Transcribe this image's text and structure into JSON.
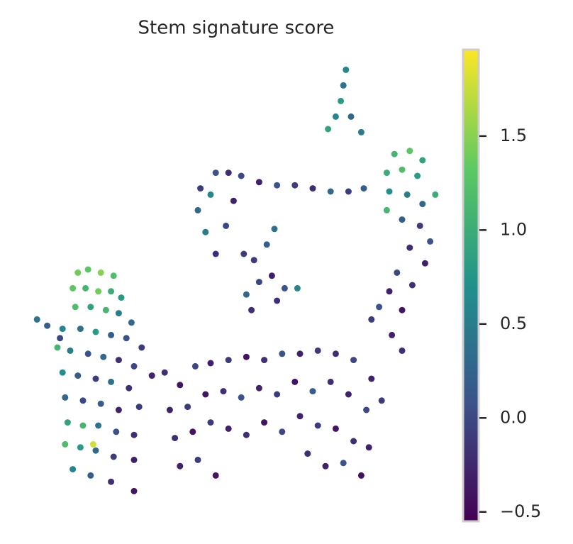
{
  "chart_data": {
    "type": "scatter",
    "title": "Stem signature score",
    "colormap": "viridis",
    "xlim": [
      0,
      16
    ],
    "ylim": [
      0,
      14
    ],
    "clim": [
      -0.55,
      1.96
    ],
    "cticks": [
      {
        "value": -0.5,
        "label": "−0.5"
      },
      {
        "value": 0,
        "label": "0.0"
      },
      {
        "value": 0.5,
        "label": "0.5"
      },
      {
        "value": 1,
        "label": "1.0"
      },
      {
        "value": 1.5,
        "label": "1.5"
      }
    ],
    "x": [
      1.8,
      2.2,
      2.7,
      3.2,
      1.6,
      2.1,
      2.6,
      3.1,
      3.5,
      1.7,
      2.3,
      2.9,
      3.4,
      3.9,
      1.2,
      1.9,
      2.5,
      3.1,
      3.7,
      4.3,
      1.0,
      1.5,
      2.2,
      2.8,
      3.4,
      4.0,
      4.7,
      1.2,
      1.8,
      2.5,
      3.1,
      3.8,
      1.3,
      2.0,
      2.7,
      3.4,
      4.2,
      1.4,
      2.0,
      2.6,
      3.3,
      4.0,
      1.3,
      1.9,
      2.5,
      3.2,
      4.0,
      1.6,
      2.3,
      3.1,
      4.0,
      2.4,
      0.2,
      0.6,
      1.1,
      5.2,
      5.8,
      6.4,
      7.0,
      7.7,
      8.4,
      9.1,
      9.8,
      10.5,
      11.2,
      11.9,
      12.6,
      13.3,
      13.7,
      5.4,
      6.1,
      6.8,
      7.5,
      8.2,
      8.9,
      9.6,
      10.3,
      11.0,
      11.7,
      12.4,
      13.1,
      5.6,
      6.3,
      7.0,
      7.7,
      8.4,
      9.1,
      9.8,
      10.5,
      11.2,
      11.9,
      12.6,
      13.2,
      5.8,
      6.5,
      7.2,
      10.8,
      11.5,
      12.2,
      12.9,
      14.2,
      14.8,
      15.3,
      13.9,
      14.5,
      15.1,
      15.8,
      14.0,
      14.7,
      15.3,
      13.9,
      14.5,
      15.2,
      15.6,
      14.8,
      15.4,
      14.3,
      14.9,
      14.0,
      13.6,
      14.5,
      13.3,
      14.1,
      14.5,
      12.3,
      12.2,
      12.1,
      11.9,
      11.6,
      12.5,
      12.9,
      7.2,
      7.7,
      8.2,
      8.9,
      9.6,
      10.3,
      11.0,
      11.7,
      12.4,
      13.0,
      6.6,
      6.5,
      6.8,
      7.2,
      7.6,
      7.9,
      8.3,
      7.0,
      9.5,
      9.2,
      8.7,
      8.9,
      8.4,
      8.6,
      9.4,
      9.9,
      10.4,
      9.6
    ],
    "y": [
      7.4,
      7.5,
      7.4,
      7.3,
      6.9,
      6.9,
      6.8,
      6.8,
      6.6,
      6.3,
      6.3,
      6.2,
      6.1,
      5.8,
      5.6,
      5.6,
      5.5,
      5.4,
      5.3,
      5.0,
      5.0,
      4.9,
      4.8,
      4.7,
      4.6,
      4.4,
      4.1,
      4.2,
      4.1,
      4.0,
      3.9,
      3.7,
      3.4,
      3.3,
      3.2,
      3.0,
      3.1,
      2.6,
      2.5,
      2.5,
      2.3,
      2.2,
      1.9,
      1.8,
      1.7,
      1.5,
      1.4,
      1.1,
      0.9,
      0.7,
      0.4,
      1.9,
      5.9,
      5.7,
      5.3,
      4.2,
      3.8,
      4.4,
      4.5,
      4.6,
      4.7,
      4.6,
      4.8,
      4.8,
      4.9,
      4.8,
      4.6,
      4.0,
      3.3,
      3.0,
      3.1,
      3.5,
      3.6,
      3.4,
      3.7,
      3.5,
      3.9,
      3.6,
      3.9,
      3.5,
      3.0,
      2.1,
      2.3,
      2.6,
      2.4,
      2.2,
      2.6,
      2.3,
      2.8,
      2.5,
      2.4,
      2.0,
      1.8,
      1.2,
      1.4,
      0.9,
      1.6,
      1.2,
      1.3,
      0.9,
      11.2,
      11.3,
      11.0,
      10.6,
      10.7,
      10.5,
      9.9,
      10.0,
      9.9,
      9.6,
      9.4,
      9.1,
      8.9,
      8.4,
      8.2,
      7.7,
      7.4,
      7.0,
      6.8,
      6.3,
      6.2,
      5.9,
      5.4,
      4.9,
      13.9,
      13.4,
      12.9,
      12.4,
      12.0,
      12.4,
      11.9,
      10.6,
      10.6,
      10.5,
      10.3,
      10.2,
      10.2,
      10.1,
      10.0,
      10.0,
      10.1,
      10.1,
      9.4,
      8.7,
      8.0,
      8.9,
      9.7,
      8.0,
      9.9,
      8.8,
      8.3,
      7.8,
      7.1,
      6.7,
      6.2,
      7.3,
      6.9,
      6.9,
      6.5
    ],
    "values": [
      1.4,
      1.3,
      1.5,
      1.2,
      1.3,
      1.1,
      1.4,
      1.0,
      0.8,
      1.2,
      0.9,
      1.1,
      0.5,
      0.3,
      0.6,
      0.4,
      0.8,
      0.2,
      0.1,
      -0.1,
      1.1,
      0.5,
      0.1,
      0.3,
      -0.2,
      0,
      -0.3,
      0.7,
      0.2,
      -0.1,
      0.4,
      -0.2,
      0.3,
      0,
      0.2,
      -0.3,
      -0.1,
      0.9,
      1.1,
      0.4,
      0.1,
      -0.2,
      1.2,
      0.8,
      0.3,
      -0.1,
      -0.3,
      0.6,
      0.2,
      -0.2,
      -0.4,
      1.8,
      0.4,
      0.2,
      0,
      -0.2,
      -0.4,
      0,
      -0.3,
      -0.1,
      -0.4,
      -0.2,
      0.1,
      -0.3,
      -0.1,
      -0.2,
      0,
      -0.3,
      -0.1,
      -0.3,
      -0.1,
      -0.4,
      -0.2,
      0.1,
      -0.3,
      -0.1,
      -0.4,
      0.2,
      -0.2,
      -0.3,
      0,
      -0.2,
      -0.4,
      -0.1,
      -0.3,
      -0.2,
      -0.4,
      0,
      -0.3,
      -0.1,
      -0.4,
      -0.2,
      -0.3,
      -0.3,
      -0.1,
      -0.4,
      -0.2,
      -0.3,
      0.1,
      -0.4,
      1.1,
      1.3,
      0.9,
      1.0,
      1.2,
      0.8,
      1.0,
      0.7,
      0.5,
      0.3,
      1.1,
      0.2,
      -0.1,
      0.1,
      -0.2,
      -0.3,
      0,
      -0.2,
      -0.3,
      0.1,
      -0.4,
      -0.1,
      -0.3,
      -0.2,
      0.6,
      0.4,
      0.8,
      0.6,
      0.9,
      0.3,
      0.5,
      0.1,
      -0.2,
      0,
      -0.3,
      0.1,
      -0.1,
      -0.2,
      0.3,
      -0.1,
      0.2,
      -0.1,
      0.3,
      0.5,
      -0.2,
      0,
      -0.3,
      -0.1,
      0.6,
      0.4,
      0.2,
      -0.1,
      0,
      0.3,
      -0.2,
      -0.3,
      0.1,
      0.6,
      -0.2
    ]
  }
}
